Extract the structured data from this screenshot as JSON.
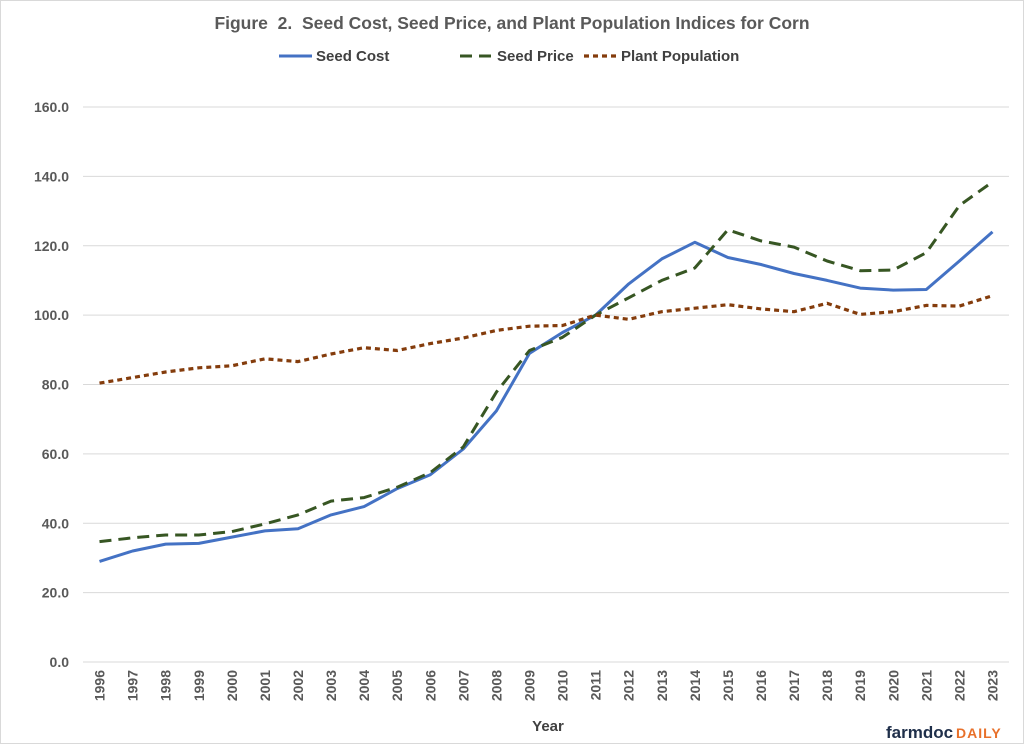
{
  "colors": {
    "seed_cost": "#4472c4",
    "seed_price": "#375623",
    "plant_population": "#843c0c",
    "gridline": "#d9d9d9",
    "text": "#595959"
  },
  "logo": {
    "part1": "farmdoc",
    "part2": "DAILY"
  },
  "chart_data": {
    "type": "line",
    "title": "Figure  2.  Seed Cost, Seed Price, and Plant Population Indices for Corn",
    "xlabel": "Year",
    "ylabel": "",
    "ylim": [
      0,
      160
    ],
    "y_ticks": [
      "0.0",
      "20.0",
      "40.0",
      "60.0",
      "80.0",
      "100.0",
      "120.0",
      "140.0",
      "160.0"
    ],
    "grid": true,
    "legend_position": "top",
    "x": [
      "1996",
      "1997",
      "1998",
      "1999",
      "2000",
      "2001",
      "2002",
      "2003",
      "2004",
      "2005",
      "2006",
      "2007",
      "2008",
      "2009",
      "2010",
      "2011",
      "2012",
      "2013",
      "2014",
      "2015",
      "2016",
      "2017",
      "2018",
      "2019",
      "2020",
      "2021",
      "2022",
      "2023"
    ],
    "series": [
      {
        "name": "Seed Cost",
        "style": "solid",
        "values": [
          29.0,
          32.0,
          34.0,
          34.2,
          36.0,
          37.8,
          38.4,
          42.4,
          44.8,
          50.0,
          54.0,
          61.4,
          72.4,
          89.0,
          95.0,
          100.0,
          109.0,
          116.2,
          121.0,
          116.6,
          114.6,
          112.0,
          110.0,
          107.8,
          107.2,
          107.4,
          115.6,
          124.0
        ]
      },
      {
        "name": "Seed Price",
        "style": "dashed",
        "values": [
          34.7,
          35.8,
          36.6,
          36.6,
          37.6,
          39.8,
          42.4,
          46.4,
          47.4,
          50.4,
          54.6,
          62.0,
          77.8,
          89.8,
          93.6,
          100.0,
          105.0,
          110.0,
          113.6,
          124.6,
          121.4,
          119.6,
          115.6,
          112.8,
          113.0,
          118.0,
          131.6,
          138.4
        ]
      },
      {
        "name": "Plant Population",
        "style": "dotted",
        "values": [
          80.4,
          82.0,
          83.6,
          84.8,
          85.4,
          87.4,
          86.6,
          88.8,
          90.6,
          89.8,
          91.8,
          93.4,
          95.6,
          96.8,
          97.0,
          100.0,
          98.8,
          101.0,
          102.0,
          103.0,
          101.8,
          101.0,
          103.4,
          100.2,
          101.0,
          102.8,
          102.6,
          105.6
        ]
      }
    ]
  }
}
